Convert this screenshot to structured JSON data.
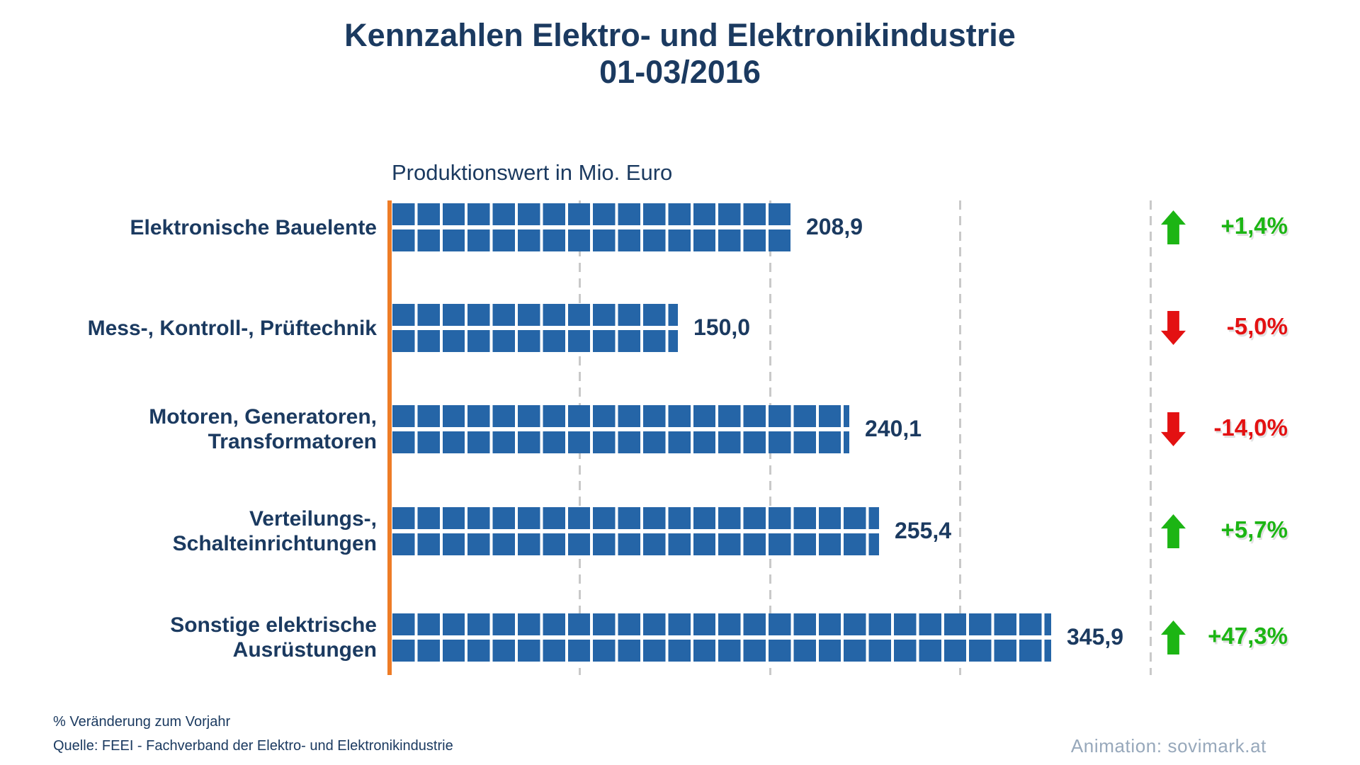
{
  "title": {
    "line1": "Kennzahlen Elektro- und Elektronikindustrie",
    "line2": "01-03/2016"
  },
  "chart_data": {
    "type": "bar",
    "orientation": "horizontal",
    "title": "Produktionswert in Mio. Euro",
    "unit": "Mio. Euro",
    "xlim": [
      0,
      400
    ],
    "gridlines": [
      100,
      200,
      300,
      400
    ],
    "grid": true,
    "categories": [
      "Elektronische Bauelente",
      "Mess-, Kontroll-, Prüftechnik",
      "Motoren, Generatoren, Transformatoren",
      "Verteilungs-, Schalteinrichtungen",
      "Sonstige elektrische Ausrüstungen"
    ],
    "values": [
      208.9,
      150.0,
      240.1,
      255.4,
      345.9
    ],
    "rows": [
      {
        "label_lines": [
          "Elektronische Bauelente"
        ],
        "value": 208.9,
        "value_label": "208,9",
        "change": 1.4,
        "change_label": "+1,4%",
        "direction": "up"
      },
      {
        "label_lines": [
          "Mess-, Kontroll-, Prüftechnik"
        ],
        "value": 150.0,
        "value_label": "150,0",
        "change": -5.0,
        "change_label": "-5,0%",
        "direction": "down"
      },
      {
        "label_lines": [
          "Motoren, Generatoren,",
          "Transformatoren"
        ],
        "value": 240.1,
        "value_label": "240,1",
        "change": -14.0,
        "change_label": "-14,0%",
        "direction": "down"
      },
      {
        "label_lines": [
          "Verteilungs-,",
          "Schalteinrichtungen"
        ],
        "value": 255.4,
        "value_label": "255,4",
        "change": 5.7,
        "change_label": "+5,7%",
        "direction": "up"
      },
      {
        "label_lines": [
          "Sonstige elektrische",
          "Ausrüstungen"
        ],
        "value": 345.9,
        "value_label": "345,9",
        "change": 47.3,
        "change_label": "+47,3%",
        "direction": "up"
      }
    ]
  },
  "footer": {
    "note": "% Veränderung zum Vorjahr",
    "source": "Quelle: FEEI - Fachverband der Elektro- und Elektronikindustrie",
    "credit": "Animation: sovimark.at"
  },
  "colors": {
    "navy": "#1B3A60",
    "bar_blue": "#2565A7",
    "axis_orange": "#EE7C26",
    "up_green": "#1CB514",
    "down_red": "#E31112",
    "grid_gray": "#C9C9C9",
    "credit_gray": "#97A8BB"
  }
}
